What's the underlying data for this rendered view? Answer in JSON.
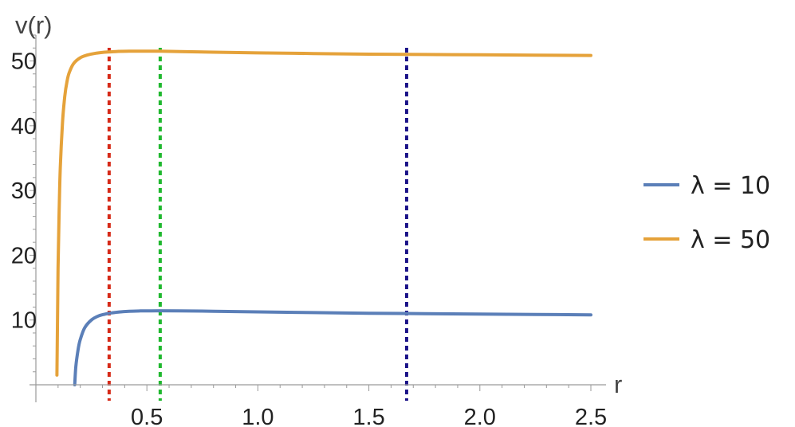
{
  "chart_data": {
    "type": "line",
    "xlabel": "r",
    "ylabel": "v(r)",
    "xlim": [
      0.0,
      2.5
    ],
    "ylim": [
      0,
      54
    ],
    "x_ticks": [
      {
        "value": 0.5,
        "label": "0.5"
      },
      {
        "value": 1.0,
        "label": "1.0"
      },
      {
        "value": 1.5,
        "label": "1.5"
      },
      {
        "value": 2.0,
        "label": "2.0"
      },
      {
        "value": 2.5,
        "label": "2.5"
      }
    ],
    "y_ticks": [
      {
        "value": 10,
        "label": "10"
      },
      {
        "value": 20,
        "label": "20"
      },
      {
        "value": 30,
        "label": "30"
      },
      {
        "value": 40,
        "label": "40"
      },
      {
        "value": 50,
        "label": "50"
      }
    ],
    "grid": false,
    "legend_position": "right",
    "series": [
      {
        "name": "λ = 10",
        "color": "#5b7fb8",
        "x": [
          0.175,
          0.18,
          0.19,
          0.2,
          0.22,
          0.25,
          0.28,
          0.31,
          0.34,
          0.38,
          0.42,
          0.47,
          0.52,
          0.56,
          0.65,
          0.8,
          1.0,
          1.25,
          1.5,
          1.75,
          2.0,
          2.25,
          2.5
        ],
        "y": [
          0.0,
          2.8,
          5.4,
          7.0,
          8.8,
          10.0,
          10.6,
          10.9,
          11.1,
          11.25,
          11.35,
          11.4,
          11.42,
          11.43,
          11.42,
          11.35,
          11.25,
          11.15,
          11.05,
          10.98,
          10.92,
          10.86,
          10.8
        ]
      },
      {
        "name": "λ = 50",
        "color": "#e5a23a",
        "x": [
          0.095,
          0.1,
          0.105,
          0.11,
          0.12,
          0.13,
          0.14,
          0.15,
          0.17,
          0.2,
          0.23,
          0.27,
          0.31,
          0.36,
          0.42,
          0.5,
          0.56,
          0.65,
          0.8,
          1.0,
          1.25,
          1.5,
          1.75,
          2.0,
          2.25,
          2.5
        ],
        "y": [
          1.5,
          18.0,
          27.0,
          33.5,
          40.5,
          44.5,
          46.8,
          48.2,
          49.6,
          50.5,
          50.9,
          51.2,
          51.35,
          51.45,
          51.5,
          51.52,
          51.5,
          51.45,
          51.35,
          51.25,
          51.15,
          51.05,
          51.0,
          50.95,
          50.9,
          50.85
        ]
      }
    ],
    "reference_lines": [
      {
        "x": 0.33,
        "color": "#d62a18",
        "style": "dotted"
      },
      {
        "x": 0.56,
        "color": "#1fb82e",
        "style": "dotted"
      },
      {
        "x": 1.67,
        "color": "#1a1288",
        "style": "dotted"
      }
    ]
  }
}
